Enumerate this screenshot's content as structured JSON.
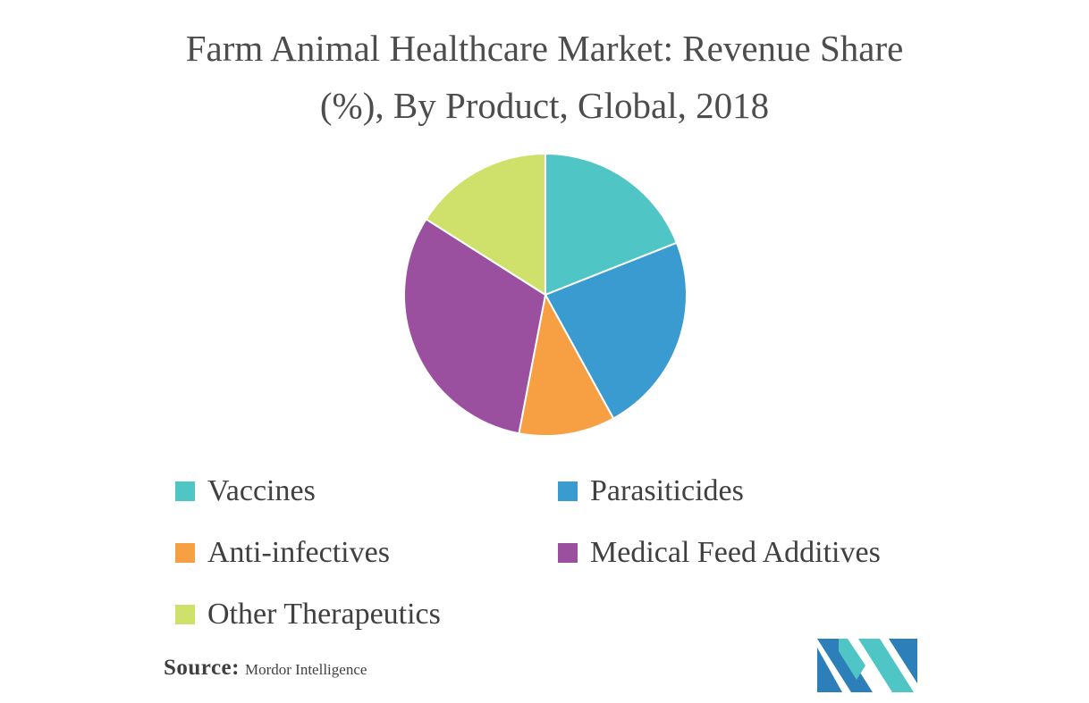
{
  "chart_data": {
    "type": "pie",
    "title": "Farm Animal Healthcare Market: Revenue Share (%), By Product, Global, 2018",
    "title_lines": [
      "Farm Animal Healthcare Market: Revenue Share",
      "(%), By Product, Global, 2018"
    ],
    "slices": [
      {
        "label": "Vaccines",
        "value": 19,
        "color": "#4fc5c6"
      },
      {
        "label": "Parasiticides",
        "value": 23,
        "color": "#3a9bd0"
      },
      {
        "label": "Anti-infectives",
        "value": 11,
        "color": "#f7a043"
      },
      {
        "label": "Medical Feed Additives",
        "value": 31,
        "color": "#9b4f9f"
      },
      {
        "label": "Other Therapeutics",
        "value": 16,
        "color": "#cfe06b"
      }
    ],
    "legend_position": "bottom",
    "start_angle_deg": 0,
    "direction": "clockwise"
  },
  "source": {
    "label": "Source:",
    "value": "Mordor Intelligence"
  },
  "logo": {
    "icon": "mordor-intelligence-logo",
    "colors": [
      "#2c7fb8",
      "#4fc5c6"
    ]
  }
}
